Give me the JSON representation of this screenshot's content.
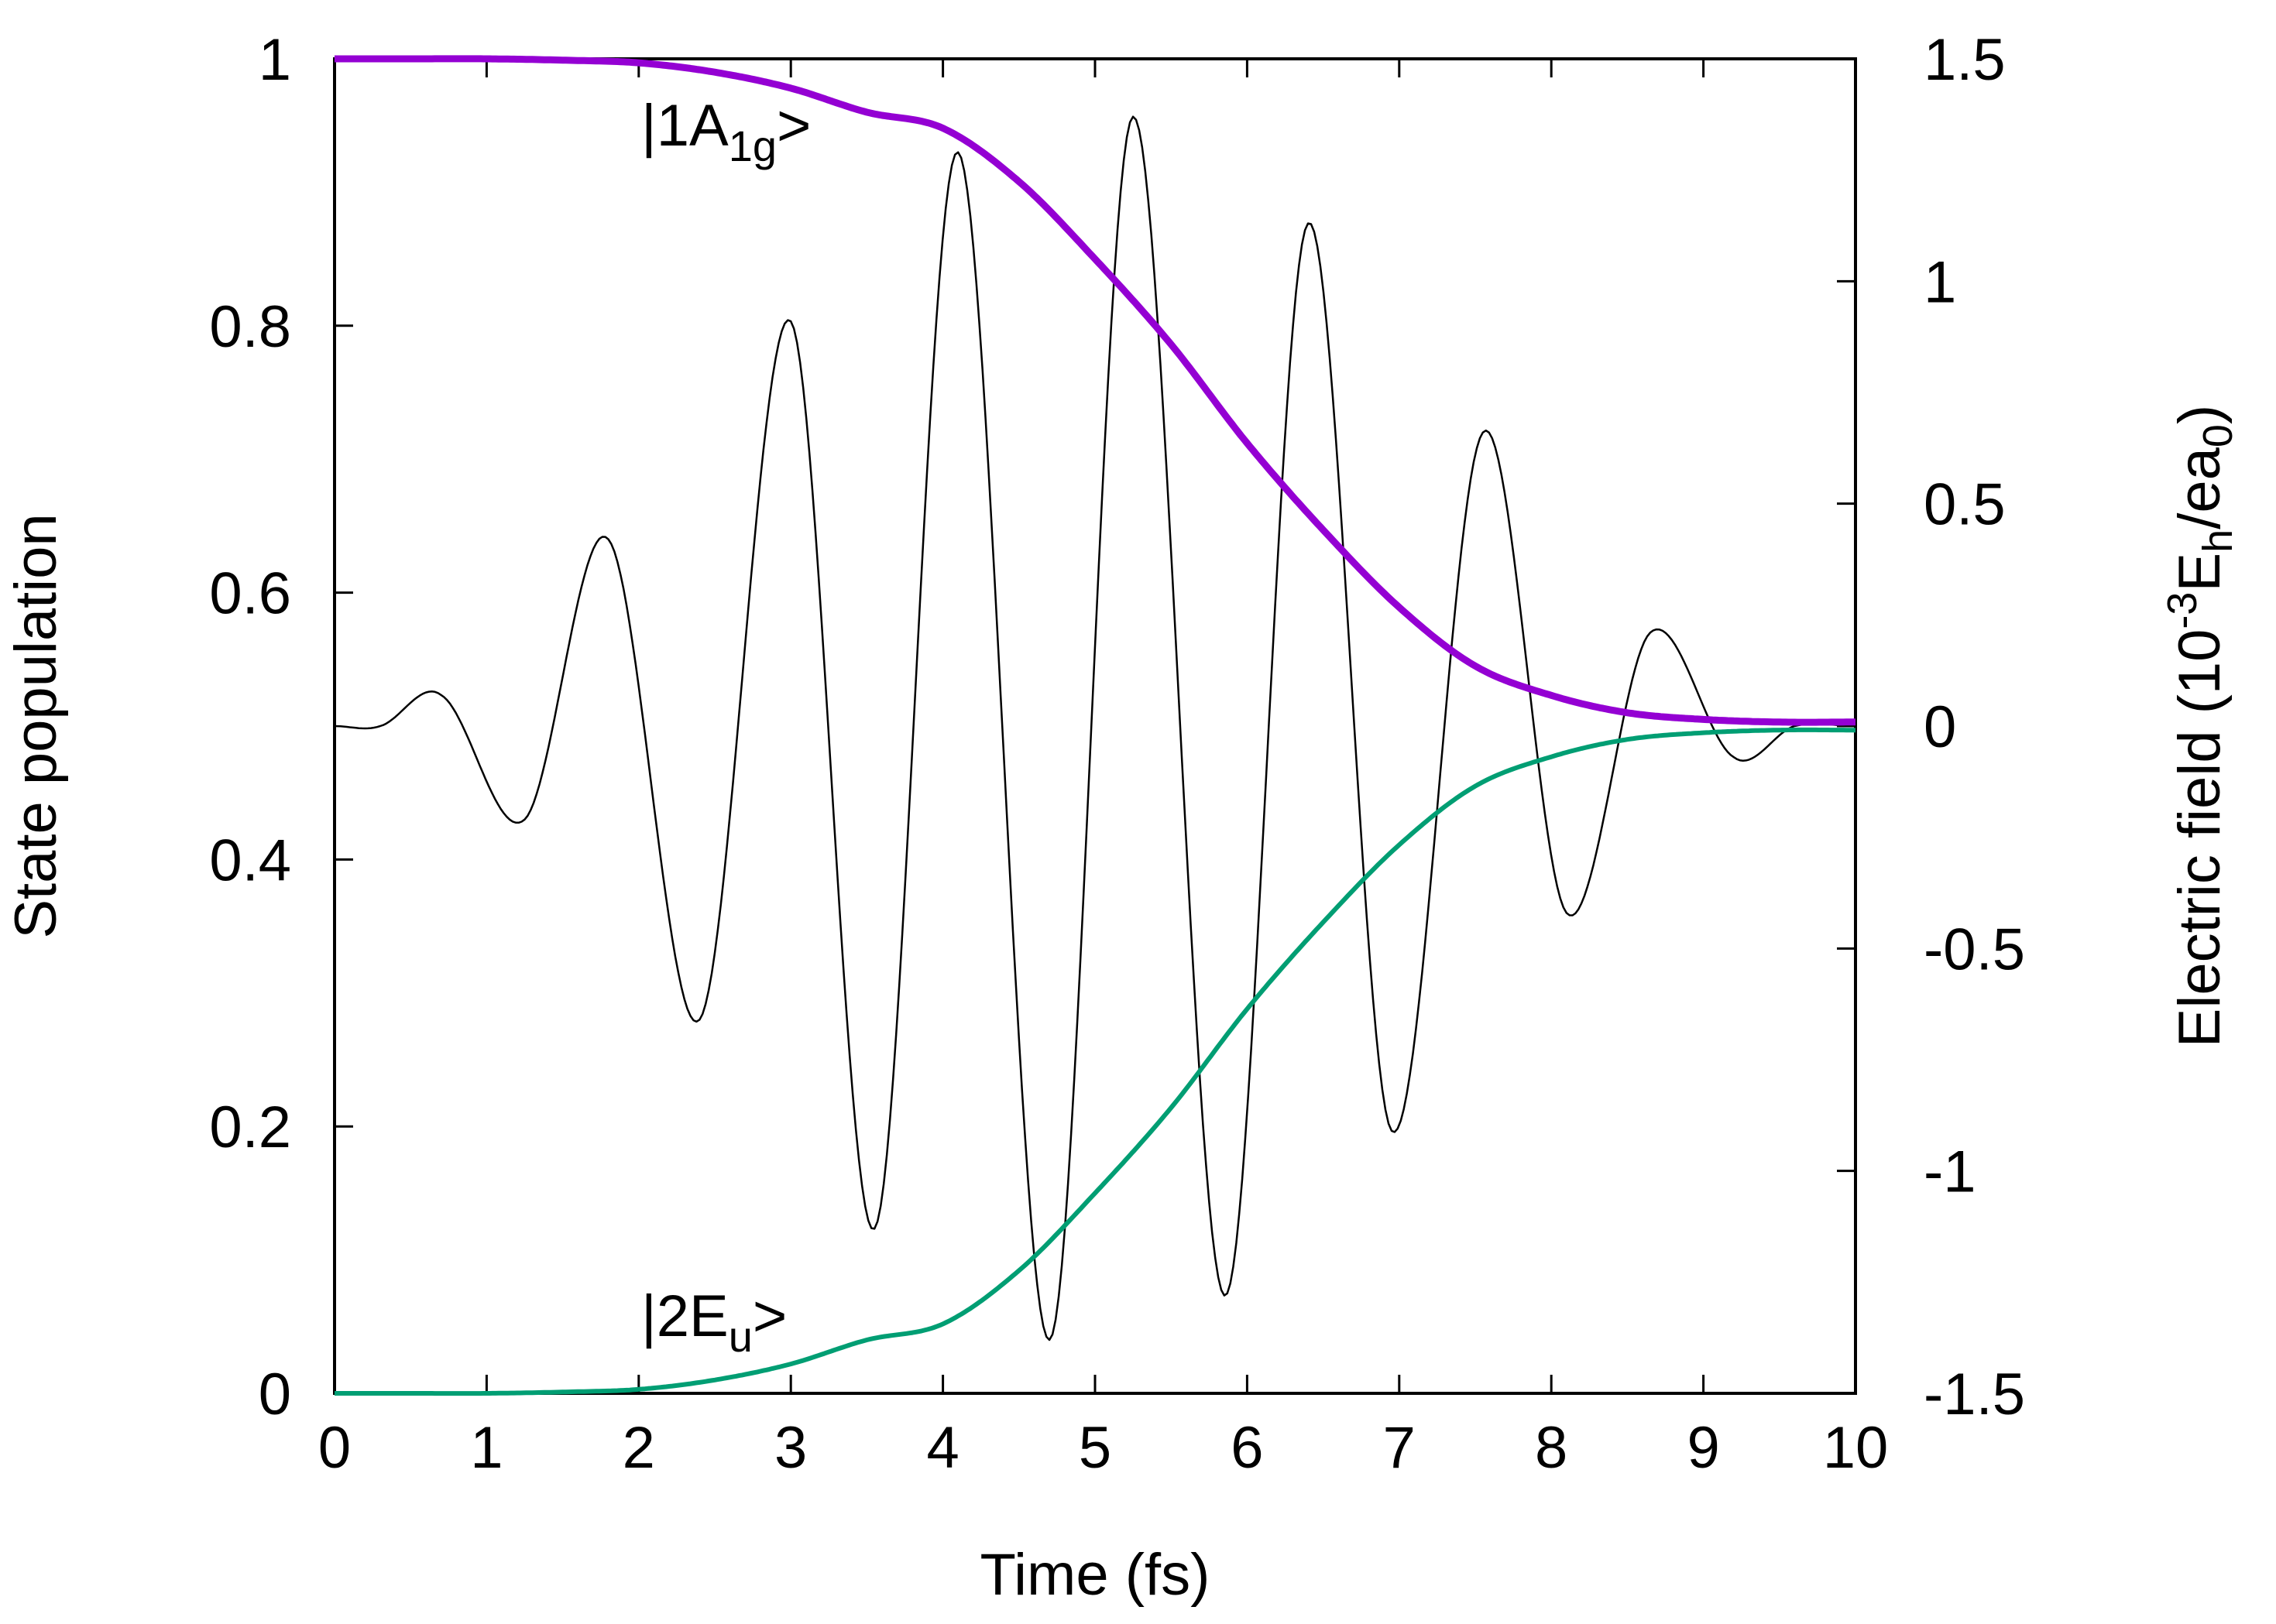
{
  "chart_data": {
    "type": "line",
    "title": "",
    "xlabel": "Time (fs)",
    "ylabel": "State population",
    "y2label": {
      "prefix": "Electric field (10",
      "exp": "-3",
      "mid": "E",
      "sub1": "h",
      "mid2": "/ea",
      "sub2": "0",
      "suffix": ")"
    },
    "xlim": [
      0,
      10
    ],
    "ylim": [
      0,
      1
    ],
    "y2lim": [
      -1.5,
      1.5
    ],
    "x_ticks": [
      "0",
      "1",
      "2",
      "3",
      "4",
      "5",
      "6",
      "7",
      "8",
      "9",
      "10"
    ],
    "y_ticks": [
      "0",
      "0.2",
      "0.4",
      "0.6",
      "0.8",
      "1"
    ],
    "y2_ticks": [
      "-1.5",
      "-1",
      "-0.5",
      "0",
      "0.5",
      "1",
      "1.5"
    ],
    "grid": false,
    "annotations": [
      {
        "name": "annot-1a1g",
        "main": "|1A",
        "sub": "1g",
        "tail": ">",
        "x": 2.0,
        "y": 0.935
      },
      {
        "name": "annot-2eu",
        "main": "|2E",
        "sub": "u",
        "tail": ">",
        "x": 2.0,
        "y": 0.045
      }
    ],
    "series": [
      {
        "name": "|1A1g> population",
        "axis": "left",
        "color": "#9400d3",
        "x": [
          0,
          0.5,
          1.0,
          1.5,
          2.0,
          2.5,
          3.0,
          3.5,
          4.0,
          4.5,
          5.0,
          5.5,
          6.0,
          6.5,
          7.0,
          7.5,
          8.0,
          8.5,
          9.0,
          9.5,
          10.0
        ],
        "y": [
          1.0,
          1.0,
          1.0,
          0.999,
          0.997,
          0.99,
          0.978,
          0.96,
          0.948,
          0.908,
          0.85,
          0.786,
          0.712,
          0.647,
          0.589,
          0.545,
          0.523,
          0.51,
          0.505,
          0.503,
          0.503
        ]
      },
      {
        "name": "|2Eu> population",
        "axis": "left",
        "color": "#009e73",
        "x": [
          0,
          0.5,
          1.0,
          1.5,
          2.0,
          2.5,
          3.0,
          3.5,
          4.0,
          4.5,
          5.0,
          5.5,
          6.0,
          6.5,
          7.0,
          7.5,
          8.0,
          8.5,
          9.0,
          9.5,
          10.0
        ],
        "y": [
          0.0,
          0.0,
          0.0,
          0.001,
          0.003,
          0.01,
          0.022,
          0.04,
          0.052,
          0.092,
          0.15,
          0.214,
          0.288,
          0.353,
          0.411,
          0.455,
          0.477,
          0.49,
          0.495,
          0.497,
          0.497
        ]
      },
      {
        "name": "Electric field",
        "axis": "right",
        "color": "#000000",
        "x": [
          0,
          0.3,
          0.7,
          1.25,
          1.8,
          2.4,
          3.0,
          3.55,
          4.1,
          4.7,
          5.25,
          5.85,
          6.4,
          6.95,
          7.55,
          8.1,
          8.65,
          9.2,
          9.6,
          10.0
        ],
        "y": [
          0.0,
          0.0,
          0.07,
          -0.21,
          0.42,
          -0.66,
          0.91,
          -1.13,
          1.29,
          -1.38,
          1.37,
          -1.28,
          1.13,
          -0.91,
          0.66,
          -0.42,
          0.21,
          -0.07,
          0.0,
          0.0
        ]
      }
    ]
  }
}
